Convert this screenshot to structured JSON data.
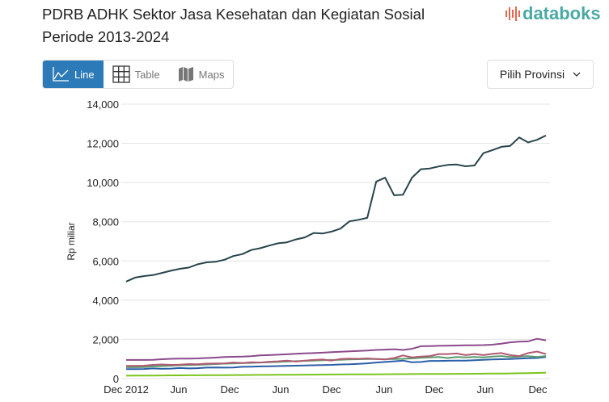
{
  "title_line1": "PDRB ADHK Sektor Jasa Kesehatan dan Kegiatan Sosial",
  "title_line2": "Periode 2013-2024",
  "logo": "databoks",
  "tabs": [
    {
      "label": "Line",
      "icon": "line-chart-icon",
      "active": true
    },
    {
      "label": "Table",
      "icon": "table-grid-icon"
    },
    {
      "label": "Maps",
      "icon": "map-icon"
    }
  ],
  "province_select": {
    "label": "Pilih Provinsi",
    "icon": "chevron-down-icon"
  },
  "chart_data": {
    "type": "line",
    "ylabel": "Rp miliar",
    "ylim": [
      0,
      14000
    ],
    "yticks": [
      "0",
      "2,000",
      "4,000",
      "6,000",
      "8,000",
      "10,000",
      "12,000",
      "14,000"
    ],
    "xticks": [
      "Dec 2012",
      "Jun",
      "Dec",
      "Jun",
      "Dec",
      "Jun",
      "Dec",
      "Jun",
      "Dec"
    ],
    "grid": true,
    "series": [
      {
        "color": "#27444a",
        "values": [
          4950,
          5150,
          5230,
          5280,
          5390,
          5500,
          5600,
          5660,
          5830,
          5930,
          5960,
          6060,
          6250,
          6350,
          6560,
          6650,
          6780,
          6900,
          6950,
          7100,
          7200,
          7430,
          7400,
          7500,
          7650,
          8020,
          8100,
          8200,
          10050,
          10250,
          9350,
          9380,
          10250,
          10680,
          10720,
          10820,
          10900,
          10920,
          10830,
          10870,
          11500,
          11650,
          11820,
          11870,
          12300,
          12050,
          12180,
          12400
        ]
      },
      {
        "color": "#8b4a8c",
        "values": [
          950,
          950,
          950,
          960,
          990,
          1010,
          1020,
          1020,
          1030,
          1050,
          1070,
          1100,
          1110,
          1120,
          1140,
          1180,
          1200,
          1220,
          1240,
          1270,
          1290,
          1300,
          1320,
          1350,
          1370,
          1390,
          1410,
          1430,
          1460,
          1480,
          1500,
          1460,
          1520,
          1650,
          1660,
          1670,
          1680,
          1690,
          1700,
          1700,
          1710,
          1730,
          1780,
          1850,
          1880,
          1900,
          2030,
          1950
        ]
      },
      {
        "color": "#b05a72",
        "values": [
          650,
          650,
          660,
          700,
          720,
          700,
          710,
          740,
          730,
          760,
          770,
          780,
          820,
          790,
          830,
          820,
          860,
          880,
          920,
          870,
          920,
          950,
          980,
          920,
          1000,
          1020,
          1010,
          1030,
          1000,
          980,
          1050,
          1180,
          1080,
          1120,
          1150,
          1250,
          1250,
          1280,
          1200,
          1250,
          1200,
          1260,
          1300,
          1200,
          1150,
          1300,
          1380,
          1250
        ]
      },
      {
        "color": "#5c9a6c",
        "values": [
          580,
          580,
          590,
          620,
          640,
          660,
          680,
          690,
          700,
          720,
          740,
          760,
          770,
          790,
          800,
          820,
          830,
          850,
          870,
          890,
          900,
          920,
          940,
          950,
          960,
          980,
          990,
          1000,
          1000,
          990,
          1000,
          1010,
          1030,
          1060,
          1080,
          1100,
          1050,
          1100,
          1080,
          1100,
          1080,
          1120,
          1150,
          1100,
          1120,
          1150,
          1100,
          1150
        ]
      },
      {
        "color": "#2a5ea8",
        "values": [
          480,
          480,
          490,
          520,
          500,
          510,
          540,
          520,
          530,
          560,
          570,
          560,
          570,
          600,
          610,
          620,
          630,
          640,
          650,
          660,
          670,
          680,
          690,
          700,
          720,
          730,
          750,
          780,
          820,
          850,
          880,
          920,
          830,
          850,
          900,
          900,
          910,
          920,
          920,
          940,
          960,
          980,
          990,
          1000,
          1020,
          1040,
          1050,
          1100
        ]
      },
      {
        "color": "#7cc41e",
        "values": [
          150,
          152,
          155,
          158,
          160,
          163,
          165,
          168,
          170,
          173,
          175,
          178,
          180,
          183,
          185,
          188,
          190,
          193,
          195,
          198,
          200,
          203,
          205,
          208,
          210,
          213,
          215,
          218,
          220,
          223,
          225,
          228,
          230,
          233,
          235,
          238,
          240,
          243,
          245,
          248,
          250,
          255,
          260,
          265,
          270,
          280,
          290,
          300
        ]
      }
    ]
  }
}
